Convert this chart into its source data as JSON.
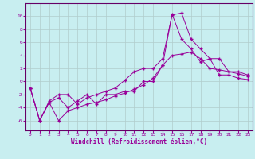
{
  "xlabel": "Windchill (Refroidissement éolien,°C)",
  "xlim": [
    -0.5,
    23.5
  ],
  "ylim": [
    -7.5,
    12
  ],
  "yticks": [
    -6,
    -4,
    -2,
    0,
    2,
    4,
    6,
    8,
    10
  ],
  "xticks": [
    0,
    1,
    2,
    3,
    4,
    5,
    6,
    7,
    8,
    9,
    10,
    11,
    12,
    13,
    14,
    15,
    16,
    17,
    18,
    19,
    20,
    21,
    22,
    23
  ],
  "background_color": "#c8eef0",
  "grid_color": "#b0cccc",
  "line_color": "#990099",
  "spine_color": "#660066",
  "line1_x": [
    0,
    1,
    2,
    3,
    4,
    5,
    6,
    7,
    8,
    9,
    10,
    11,
    12,
    13,
    14,
    15,
    16,
    17,
    18,
    19,
    20,
    21,
    22,
    23
  ],
  "line1_y": [
    -1.0,
    -6.0,
    -3.2,
    -6.0,
    -4.5,
    -4.0,
    -3.5,
    -3.2,
    -2.8,
    -2.2,
    -1.8,
    -1.2,
    -0.5,
    0.5,
    2.5,
    4.0,
    4.2,
    4.5,
    3.5,
    2.0,
    1.8,
    1.5,
    1.2,
    0.8
  ],
  "line2_x": [
    0,
    1,
    2,
    3,
    4,
    5,
    6,
    7,
    8,
    9,
    10,
    11,
    12,
    13,
    14,
    15,
    16,
    17,
    18,
    19,
    20,
    21,
    22,
    23
  ],
  "line2_y": [
    -1.0,
    -6.0,
    -3.0,
    -2.0,
    -2.0,
    -3.5,
    -2.5,
    -2.0,
    -1.5,
    -1.0,
    0.2,
    1.5,
    2.0,
    2.0,
    3.5,
    10.2,
    10.5,
    6.5,
    5.0,
    3.5,
    3.5,
    1.5,
    1.5,
    1.0
  ],
  "line3_x": [
    0,
    1,
    2,
    3,
    4,
    5,
    6,
    7,
    8,
    9,
    10,
    11,
    12,
    13,
    14,
    15,
    16,
    17,
    18,
    19,
    20,
    21,
    22,
    23
  ],
  "line3_y": [
    -1.0,
    -6.0,
    -3.2,
    -2.5,
    -4.0,
    -3.0,
    -2.0,
    -3.5,
    -2.0,
    -2.0,
    -1.5,
    -1.5,
    0.0,
    0.0,
    2.5,
    10.3,
    6.5,
    5.0,
    3.0,
    3.5,
    1.0,
    1.0,
    0.5,
    0.3
  ]
}
